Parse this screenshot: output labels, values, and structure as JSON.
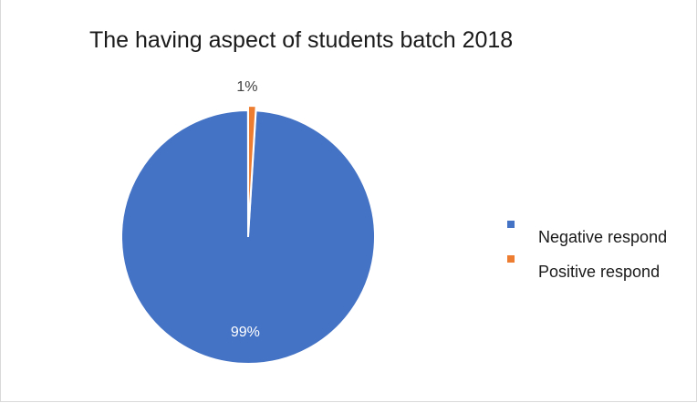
{
  "chart_data": {
    "type": "pie",
    "title": "The having aspect of students batch 2018",
    "slices": [
      {
        "label": "Negative respond",
        "value": 99,
        "data_label": "99%",
        "color": "#4472c4"
      },
      {
        "label": "Positive respond",
        "value": 1,
        "data_label": "1%",
        "color": "#ed7d31"
      }
    ],
    "legend_placement": "right"
  }
}
